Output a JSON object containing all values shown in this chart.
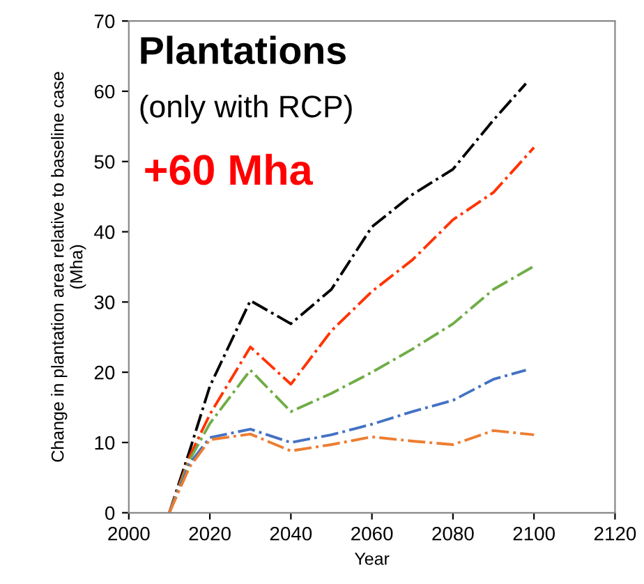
{
  "chart_data": {
    "type": "line",
    "xlabel": "Year",
    "ylabel": "Change in plantation area relative to baseline case\n(Mha)",
    "annotations": [
      "Plantations",
      "(only with RCP)",
      "+60 Mha"
    ],
    "line_style": "dashdot",
    "grid": false,
    "legend": false,
    "xlim": [
      2000,
      2120
    ],
    "xticks": [
      2000,
      2020,
      2040,
      2060,
      2080,
      2100,
      2120
    ],
    "ylim": [
      0,
      70
    ],
    "yticks": [
      0,
      10,
      20,
      30,
      40,
      50,
      60,
      70
    ],
    "series": [
      {
        "color": "#000000",
        "x": [
          2010,
          2015,
          2020,
          2030,
          2040,
          2050,
          2060,
          2070,
          2080,
          2090,
          2098
        ],
        "values": [
          0,
          8.8,
          18,
          30.2,
          26.9,
          31.8,
          40.7,
          45.3,
          48.9,
          55.9,
          61.1
        ]
      },
      {
        "color": "#ff3300",
        "x": [
          2010,
          2015,
          2020,
          2030,
          2040,
          2050,
          2060,
          2070,
          2080,
          2090,
          2100
        ],
        "values": [
          0,
          8,
          14,
          23.6,
          18.3,
          25.9,
          31.5,
          36,
          41.7,
          45.6,
          52
        ]
      },
      {
        "color": "#70ad47",
        "x": [
          2010,
          2015,
          2020,
          2030,
          2040,
          2050,
          2060,
          2070,
          2080,
          2090,
          2100
        ],
        "values": [
          0,
          7.5,
          12.7,
          20.3,
          14.4,
          17,
          20,
          23.3,
          26.9,
          31.8,
          35.1
        ]
      },
      {
        "color": "#4472c4",
        "x": [
          2010,
          2015,
          2020,
          2030,
          2040,
          2050,
          2060,
          2070,
          2080,
          2090,
          2098
        ],
        "values": [
          0,
          7,
          10.7,
          11.9,
          10,
          11.1,
          12.6,
          14.4,
          16,
          19,
          20.3
        ]
      },
      {
        "color": "#ed7d31",
        "x": [
          2010,
          2015,
          2020,
          2030,
          2040,
          2050,
          2060,
          2070,
          2080,
          2090,
          2100
        ],
        "values": [
          0,
          6.5,
          10.4,
          11.2,
          8.8,
          9.7,
          10.8,
          10.2,
          9.7,
          11.7,
          11.1
        ]
      }
    ]
  }
}
